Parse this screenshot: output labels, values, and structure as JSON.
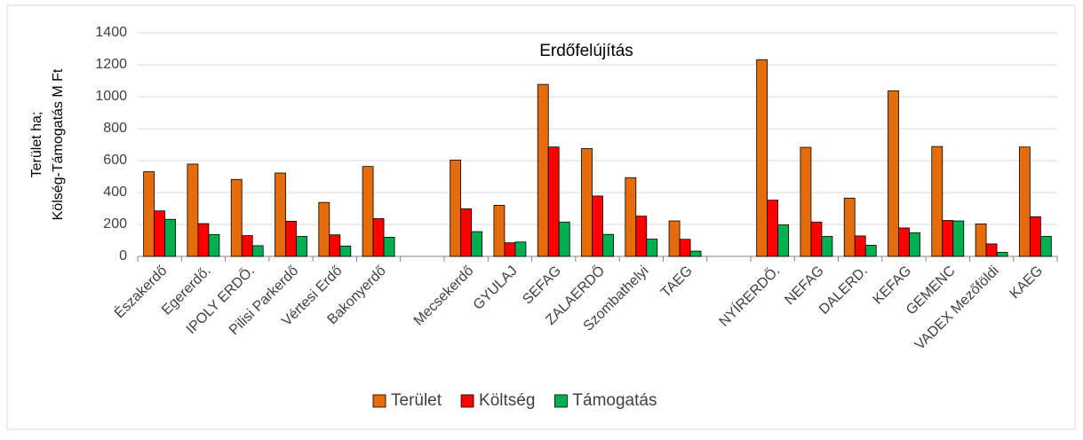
{
  "chart_data": {
    "type": "bar",
    "title": "Erdőfelújítás",
    "ylabel": [
      "Terület ha;",
      "Kölség-Támogatás M Ft"
    ],
    "categories": [
      "Északerdő",
      "Egererdő.",
      "IPOLY ERDŐ.",
      "Pilisi Parkerdő",
      "Vértesi Erdő",
      "Bakonyerdő",
      null,
      "Mecsekerdő",
      "GYULAJ",
      "SEFAG",
      "ZALAERDŐ",
      "Szombathelyi",
      "TAEG",
      null,
      "NYÍRERDŐ.",
      "NEFAG",
      "DALERD.",
      "KEFAG",
      "GEMENC",
      "VADEX Mezőföldi",
      "KAEG"
    ],
    "series": [
      {
        "name": "Terület",
        "color": "#e46c0a",
        "values": [
          530,
          578,
          482,
          522,
          338,
          563,
          null,
          603,
          320,
          1077,
          675,
          493,
          222,
          null,
          1232,
          683,
          365,
          1037,
          688,
          203,
          685
        ]
      },
      {
        "name": "Költség",
        "color": "#ff0000",
        "values": [
          285,
          205,
          130,
          220,
          135,
          237,
          null,
          298,
          85,
          685,
          378,
          252,
          107,
          null,
          352,
          215,
          128,
          178,
          225,
          78,
          248
        ]
      },
      {
        "name": "Támogatás",
        "color": "#00b050",
        "values": [
          232,
          137,
          67,
          125,
          65,
          120,
          null,
          155,
          90,
          215,
          138,
          108,
          33,
          null,
          197,
          125,
          70,
          148,
          222,
          25,
          125
        ]
      }
    ],
    "ylim": [
      0,
      1400
    ],
    "yticks": [
      0,
      200,
      400,
      600,
      800,
      1000,
      1200,
      1400
    ],
    "grid": true,
    "legend": "bottom"
  }
}
